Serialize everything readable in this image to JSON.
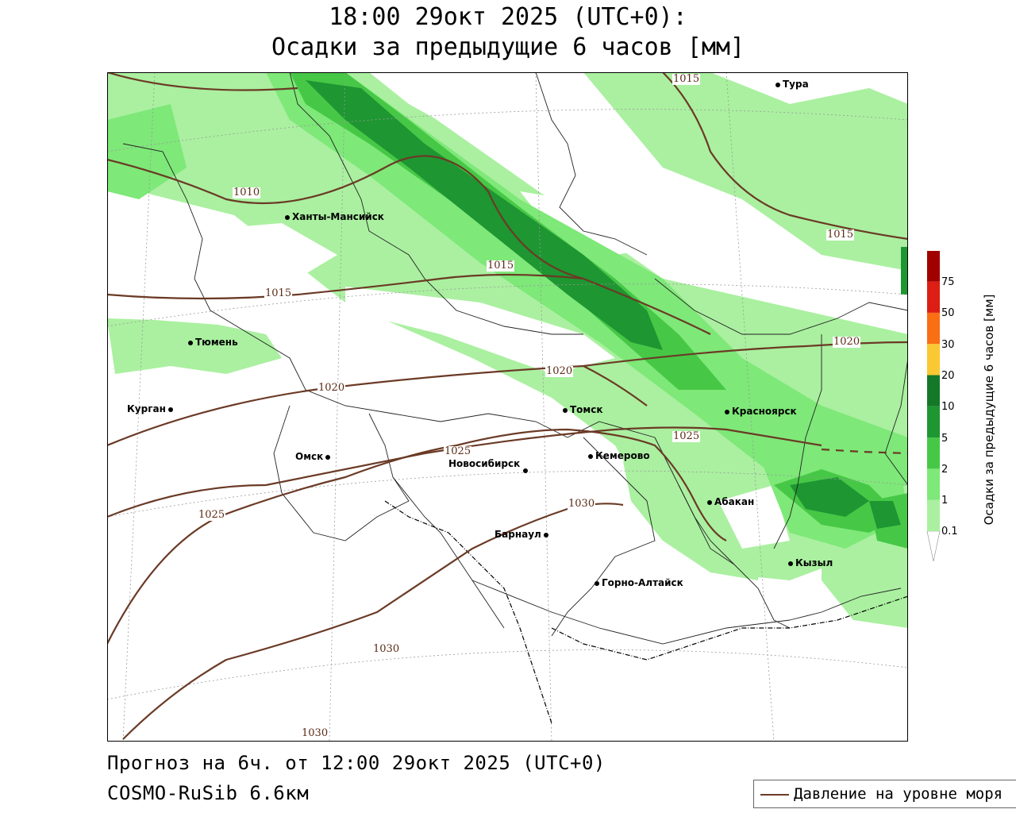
{
  "title": {
    "line1": "18:00 29окт 2025 (UTC+0):",
    "line2": "Осадки за предыдущие 6 часов [мм]"
  },
  "footer": {
    "forecast": "Прогноз на 6ч. от 12:00 29окт 2025 (UTC+0)",
    "model": "COSMO-RuSib 6.6км"
  },
  "legend": {
    "pressure_label": "Давление на уровне моря",
    "pressure_color": "#6b3a26"
  },
  "colorbar": {
    "title": "Осадки за предыдущие 6 часов [мм]",
    "levels": [
      "0.1",
      "1",
      "2",
      "5",
      "10",
      "20",
      "30",
      "50",
      "75"
    ],
    "colors": [
      "#aaf0a0",
      "#7ee878",
      "#46c846",
      "#1e9632",
      "#147828",
      "#fac832",
      "#fa6e14",
      "#dc1e14",
      "#a00000",
      "#aaaaaa"
    ]
  },
  "cities": [
    {
      "name": "Тура"
    },
    {
      "name": "Ханты-Мансийск"
    },
    {
      "name": "Тюмень"
    },
    {
      "name": "Курган"
    },
    {
      "name": "Омск"
    },
    {
      "name": "Томск"
    },
    {
      "name": "Новосибирск"
    },
    {
      "name": "Кемерово"
    },
    {
      "name": "Красноярск"
    },
    {
      "name": "Абакан"
    },
    {
      "name": "Барнаул"
    },
    {
      "name": "Горно-Алтайск"
    },
    {
      "name": "Кызыл"
    }
  ],
  "isobar_labels": [
    "1010",
    "1015",
    "1015",
    "1015",
    "1015",
    "1020",
    "1020",
    "1020",
    "1025",
    "1025",
    "1025",
    "1030",
    "1030",
    "1030"
  ]
}
